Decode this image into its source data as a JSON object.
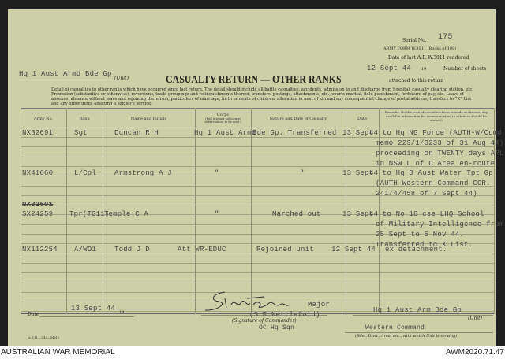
{
  "header": {
    "serial_label": "Serial No.",
    "serial_value": "175",
    "form_name": "ARMY FORM W.3011 (Books of 100)",
    "last_rendered_label": "Date of last A.F. W.3011 rendered",
    "last_rendered_date": "12 Sept 44",
    "year_label": "19",
    "sheets_label": "Number of sheets",
    "attached_label": "attached to this return",
    "unit_value": "Hq 1 Aust Armd Bde Gp",
    "unit_label": "(Unit)",
    "title": "CASUALTY RETURN — OTHER RANKS",
    "instructions": "Detail of casualties to other ranks which have occurred since last return. The detail should include all battle casualties, accidents, admission to and discharge from hospital, casualty clearing station, etc. Promotion (substantive or otherwise), reversions, trade groupings and relinquishments thereof, transfers, postings, attachments, etc., courts-martial, field punishment, forfeiture of pay, etc. Leave of absence, absence without leave and rejoining therefrom, particulars of marriage, birth or death of children, alteration in next of kin and any consequential change of postal address, transfers to “X” List and any other items affecting a soldier's service."
  },
  "columns": [
    "Army No.",
    "Rank",
    "Name and Initials",
    "Corps",
    "(Full title and authorised abbreviations to be used.)",
    "Nature and Date of Casualty",
    "Date",
    "Remarks. (In the case of casualties from wounds or disease, any available information for communication to relatives should be stated.)"
  ],
  "entries": [
    {
      "army_no": "NX32691",
      "rank": "Sgt",
      "name": "Duncan R H",
      "corps": "Hq 1 Aust Armd",
      "nature": "Bde Gp. Transferred",
      "date": "13 Sept",
      "remarks": [
        "44 to Hq NG Force (AUTH-W/Comd",
        "memo 229/1/3233 of 31 Aug 44)",
        "proceeding on TWENTY days ARL",
        "in NSW L of C Area en-route."
      ]
    },
    {
      "army_no": "NX41660",
      "rank": "L/Cpl",
      "name": "Armstrong A J",
      "corps": "\"",
      "nature": "\"",
      "date": "13 Sept",
      "remarks": [
        "44 to Hq 3 Aust Water Tpt Gp",
        "(AUTH-Western Command CCR.",
        "241/4/458 of 7 Sept 44)"
      ]
    },
    {
      "army_no_struck": "NX32691",
      "army_no": "SX24259",
      "rank": "Tpr(TG11)",
      "name": "Temple C A",
      "corps": "\"",
      "nature": "Marched out",
      "date": "13 Sept",
      "remarks": [
        "44 to No 18 cse LHQ School",
        "of Military Intelligence from",
        "25 Sept to 5 Nov 44.",
        "Transferred to X List."
      ]
    },
    {
      "army_no": "NX112254",
      "rank": "A/WO1",
      "name": "Todd J D",
      "corps": "Att WR-EDUC",
      "nature": "Rejoined unit",
      "date": "12 Sept 44",
      "remarks": [
        "ex detachment."
      ]
    }
  ],
  "footer_form": {
    "date_label": "Date",
    "date_value": "13 Sept 44",
    "year_label": "19",
    "rank": "Major",
    "commander_name": "(S R Nettlefold)",
    "signature_label": "(Signature of Commander)",
    "appointment": "OC Hq Sqn",
    "unit_value": "Hq 1 Aust Arm Bde Gp",
    "unit_label": "(Unit)",
    "command_value": "Western Command",
    "command_label": "(Bde., Divn., Area, etc., with which Unit is serving)",
    "print_code": "A.H.M.—1/43—D4612"
  },
  "watermark": {
    "left": "AUSTRALIAN WAR MEMORIAL",
    "right": "AWM2020.71.47"
  }
}
